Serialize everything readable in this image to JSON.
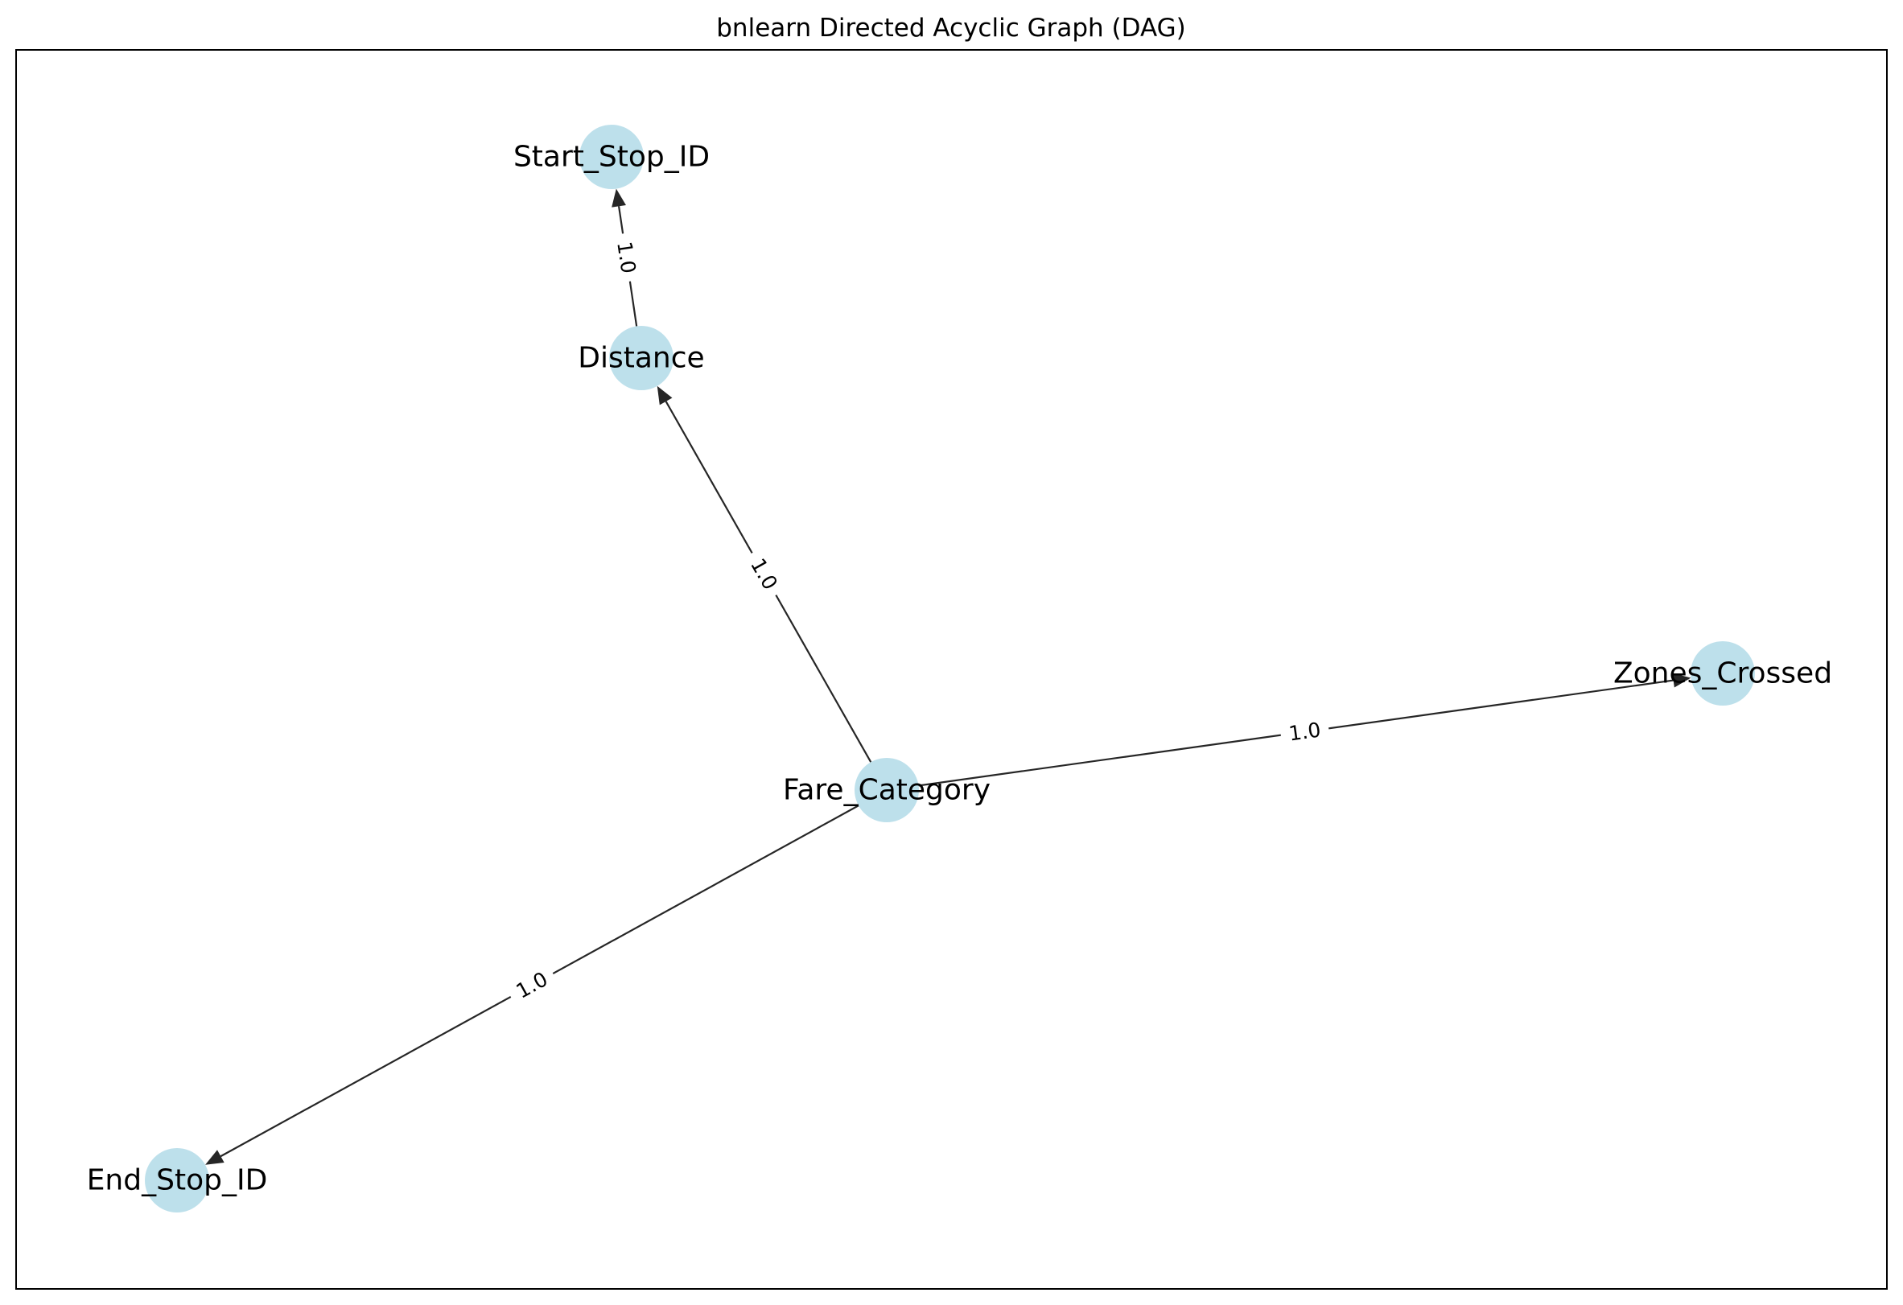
{
  "title": "bnlearn Directed Acyclic Graph (DAG)",
  "colors": {
    "node_fill": "#add8e6",
    "edge": "#000000",
    "frame": "#000000",
    "background": "#ffffff"
  },
  "nodes": [
    {
      "id": "Start_Stop_ID",
      "label": "Start_Stop_ID"
    },
    {
      "id": "Distance",
      "label": "Distance"
    },
    {
      "id": "Zones_Crossed",
      "label": "Zones_Crossed"
    },
    {
      "id": "Fare_Category",
      "label": "Fare_Category"
    },
    {
      "id": "End_Stop_ID",
      "label": "End_Stop_ID"
    }
  ],
  "edges": [
    {
      "from": "Distance",
      "to": "Start_Stop_ID",
      "weight": "1.0"
    },
    {
      "from": "Fare_Category",
      "to": "Distance",
      "weight": "1.0"
    },
    {
      "from": "Fare_Category",
      "to": "Zones_Crossed",
      "weight": "1.0"
    },
    {
      "from": "Fare_Category",
      "to": "End_Stop_ID",
      "weight": "1.0"
    }
  ]
}
